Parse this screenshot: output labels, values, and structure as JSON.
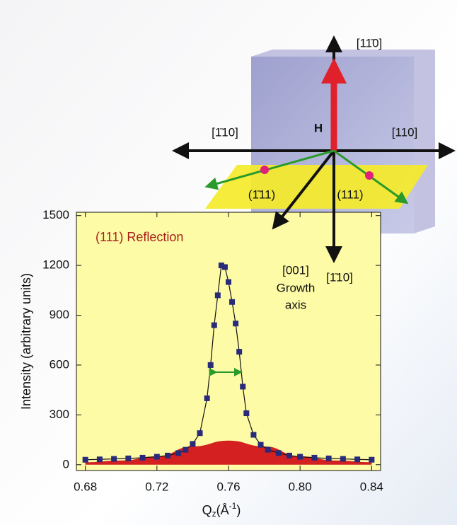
{
  "chart_data": {
    "type": "scatter",
    "title": "(111) Reflection",
    "ylabel": "Intensity (arbitrary units)",
    "xlabel_parts": [
      "Q",
      "z",
      "(Å",
      "-1",
      ")"
    ],
    "xlim": [
      0.675,
      0.845
    ],
    "ylim": [
      -35,
      1520
    ],
    "xticks": [
      0.68,
      0.72,
      0.76,
      {
        "value": 0.8,
        "label": "0.80"
      },
      0.84
    ],
    "yticks": [
      0,
      300,
      600,
      900,
      1200,
      1500
    ],
    "series": [
      {
        "color": "#d42020",
        "kind": "area",
        "x": [
          0.68,
          0.7,
          0.72,
          0.74,
          0.76,
          0.78,
          0.8,
          0.82,
          0.84
        ],
        "values": [
          15,
          25,
          50,
          110,
          145,
          110,
          50,
          25,
          15
        ]
      },
      {
        "color": "#2a2a7a",
        "kind": "points",
        "x": [
          0.68,
          0.688,
          0.696,
          0.704,
          0.712,
          0.72,
          0.726,
          0.732,
          0.736,
          0.74,
          0.744,
          0.748,
          0.75,
          0.752,
          0.754,
          0.756,
          0.758,
          0.76,
          0.762,
          0.764,
          0.766,
          0.768,
          0.77,
          0.774,
          0.778,
          0.782,
          0.788,
          0.794,
          0.8,
          0.808,
          0.816,
          0.824,
          0.832,
          0.84
        ],
        "values": [
          30,
          32,
          35,
          38,
          42,
          48,
          55,
          70,
          90,
          125,
          190,
          400,
          600,
          840,
          1020,
          1200,
          1190,
          1100,
          980,
          850,
          680,
          470,
          310,
          180,
          120,
          90,
          70,
          55,
          48,
          42,
          38,
          35,
          32,
          30
        ]
      }
    ]
  },
  "diagram": {
    "labels": {
      "top": "[11̄0]",
      "left": "[1̄10]",
      "right": "[110]",
      "field": "H",
      "plane_left": "(1̄11)",
      "plane_right": "(111)",
      "growth_dir": "[001]",
      "growth_1": "Growth",
      "growth_2": "axis",
      "bottom": "[1̄10]"
    }
  }
}
